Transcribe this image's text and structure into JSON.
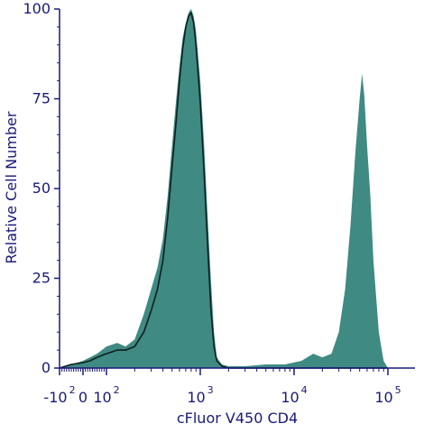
{
  "chart_data": {
    "type": "area",
    "xlabel": "cFluor V450 CD4",
    "ylabel": "Relative Cell Number",
    "x_scale": "biexponential",
    "xlim": [
      -100,
      100000
    ],
    "ylim": [
      0,
      100
    ],
    "y_ticks": [
      {
        "value": 0,
        "label": "0"
      },
      {
        "value": 25,
        "label": "25"
      },
      {
        "value": 50,
        "label": "50"
      },
      {
        "value": 75,
        "label": "75"
      },
      {
        "value": 100,
        "label": "100"
      }
    ],
    "x_tick_labels": [
      {
        "value": -100,
        "base": "-10",
        "exp": "2"
      },
      {
        "value": 0,
        "base": "0",
        "exp": ""
      },
      {
        "value": 100,
        "base": "10",
        "exp": "2"
      },
      {
        "value": 1000,
        "base": "10",
        "exp": "3"
      },
      {
        "value": 10000,
        "base": "10",
        "exp": "4"
      },
      {
        "value": 100000,
        "base": "10",
        "exp": "5"
      }
    ],
    "colors": {
      "fill": "#3f8a82",
      "outline": "#0d1f1f",
      "axis": "#1a1a7a"
    },
    "series": [
      {
        "style": "filled",
        "points": [
          [
            -100,
            0
          ],
          [
            -50,
            1
          ],
          [
            0,
            2
          ],
          [
            30,
            3
          ],
          [
            60,
            4
          ],
          [
            100,
            6
          ],
          [
            130,
            7
          ],
          [
            160,
            6
          ],
          [
            200,
            8
          ],
          [
            250,
            15
          ],
          [
            300,
            22
          ],
          [
            350,
            28
          ],
          [
            400,
            36
          ],
          [
            450,
            48
          ],
          [
            500,
            62
          ],
          [
            550,
            74
          ],
          [
            600,
            84
          ],
          [
            650,
            92
          ],
          [
            700,
            96
          ],
          [
            750,
            99
          ],
          [
            800,
            100
          ],
          [
            850,
            98
          ],
          [
            900,
            94
          ],
          [
            1000,
            80
          ],
          [
            1100,
            62
          ],
          [
            1200,
            42
          ],
          [
            1300,
            24
          ],
          [
            1400,
            10
          ],
          [
            1500,
            3
          ],
          [
            1700,
            1
          ],
          [
            2000,
            0.5
          ],
          [
            3000,
            0.5
          ],
          [
            5000,
            1
          ],
          [
            8000,
            1
          ],
          [
            12000,
            2
          ],
          [
            16000,
            4
          ],
          [
            20000,
            3
          ],
          [
            25000,
            4
          ],
          [
            30000,
            10
          ],
          [
            35000,
            22
          ],
          [
            40000,
            40
          ],
          [
            45000,
            60
          ],
          [
            50000,
            75
          ],
          [
            53000,
            82
          ],
          [
            56000,
            76
          ],
          [
            60000,
            62
          ],
          [
            65000,
            48
          ],
          [
            70000,
            30
          ],
          [
            80000,
            10
          ],
          [
            90000,
            2
          ],
          [
            100000,
            0
          ]
        ]
      },
      {
        "style": "outline",
        "points": [
          [
            -100,
            0
          ],
          [
            -50,
            1
          ],
          [
            0,
            1.5
          ],
          [
            30,
            2
          ],
          [
            60,
            3
          ],
          [
            100,
            4
          ],
          [
            130,
            5
          ],
          [
            160,
            5
          ],
          [
            200,
            6
          ],
          [
            250,
            10
          ],
          [
            300,
            16
          ],
          [
            350,
            22
          ],
          [
            400,
            30
          ],
          [
            450,
            42
          ],
          [
            500,
            56
          ],
          [
            550,
            68
          ],
          [
            600,
            80
          ],
          [
            650,
            89
          ],
          [
            700,
            95
          ],
          [
            750,
            98
          ],
          [
            800,
            99
          ],
          [
            850,
            96
          ],
          [
            900,
            90
          ],
          [
            1000,
            74
          ],
          [
            1100,
            54
          ],
          [
            1200,
            34
          ],
          [
            1300,
            16
          ],
          [
            1400,
            6
          ],
          [
            1500,
            2
          ],
          [
            1700,
            0.5
          ],
          [
            2000,
            0
          ],
          [
            100000,
            0
          ]
        ]
      }
    ]
  }
}
